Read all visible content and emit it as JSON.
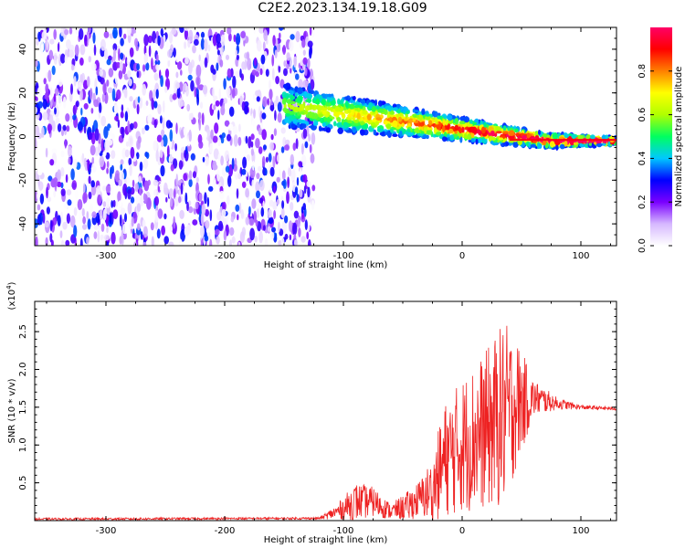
{
  "title": "C2E2.2023.134.19.18.G09",
  "chart_data": [
    {
      "type": "heatmap",
      "name": "spectrogram",
      "xlabel": "Height of straight line (km)",
      "ylabel": "Frequency (Hz)",
      "xlim": [
        -360,
        130
      ],
      "ylim": [
        -50,
        50
      ],
      "xticks": [
        -300,
        -200,
        -100,
        0,
        100
      ],
      "yticks": [
        -40,
        -20,
        0,
        20,
        40
      ],
      "colorbar": {
        "label": "Normalized spectral amplitude",
        "range": [
          0.0,
          1.0
        ],
        "ticks": [
          "0.0",
          "0.2",
          "0.4",
          "0.6",
          "0.8"
        ],
        "colors": [
          "#ffffff",
          "#d6b8ff",
          "#7a00ff",
          "#0000ff",
          "#00c8ff",
          "#00ff60",
          "#b0ff00",
          "#ffff00",
          "#ff8000",
          "#ff0000",
          "#ff0066"
        ]
      },
      "regions": [
        {
          "description": "noise",
          "x_from": -360,
          "x_to": -125,
          "freq_range": [
            -50,
            50
          ],
          "amplitude": [
            0.0,
            0.35
          ]
        },
        {
          "description": "signal",
          "x_from": -150,
          "x_to": 130,
          "center_freq_start": 14,
          "center_freq_end": -2,
          "amplitude": [
            0.3,
            1.0
          ]
        }
      ]
    },
    {
      "type": "line",
      "name": "snr",
      "xlabel": "Height of straight line (km)",
      "ylabel": "SNR (10 * v/v)",
      "yscale_label": "(x10",
      "yscale_exp": "4",
      "yscale_close": ")",
      "xlim": [
        -360,
        130
      ],
      "ylim": [
        0,
        2.9
      ],
      "xticks": [
        -300,
        -200,
        -100,
        0,
        100
      ],
      "yticks": [
        "0.5",
        "1.0",
        "1.5",
        "2.0",
        "2.5"
      ],
      "color": "#ee2222",
      "profile": [
        {
          "x": -360,
          "base": 0.02,
          "amp": 0.015
        },
        {
          "x": -120,
          "base": 0.03,
          "amp": 0.015
        },
        {
          "x": -105,
          "base": 0.12,
          "amp": 0.1
        },
        {
          "x": -90,
          "base": 0.25,
          "amp": 0.25
        },
        {
          "x": -75,
          "base": 0.25,
          "amp": 0.2
        },
        {
          "x": -60,
          "base": 0.12,
          "amp": 0.1
        },
        {
          "x": -45,
          "base": 0.2,
          "amp": 0.2
        },
        {
          "x": -35,
          "base": 0.3,
          "amp": 0.25
        },
        {
          "x": -25,
          "base": 0.4,
          "amp": 0.45
        },
        {
          "x": -15,
          "base": 0.8,
          "amp": 0.75
        },
        {
          "x": 0,
          "base": 1.0,
          "amp": 0.9
        },
        {
          "x": 20,
          "base": 1.2,
          "amp": 1.05
        },
        {
          "x": 35,
          "base": 1.4,
          "amp": 1.25
        },
        {
          "x": 45,
          "base": 1.55,
          "amp": 0.9
        },
        {
          "x": 60,
          "base": 1.62,
          "amp": 0.25
        },
        {
          "x": 80,
          "base": 1.55,
          "amp": 0.08
        },
        {
          "x": 100,
          "base": 1.5,
          "amp": 0.03
        },
        {
          "x": 130,
          "base": 1.48,
          "amp": 0.02
        }
      ]
    }
  ]
}
